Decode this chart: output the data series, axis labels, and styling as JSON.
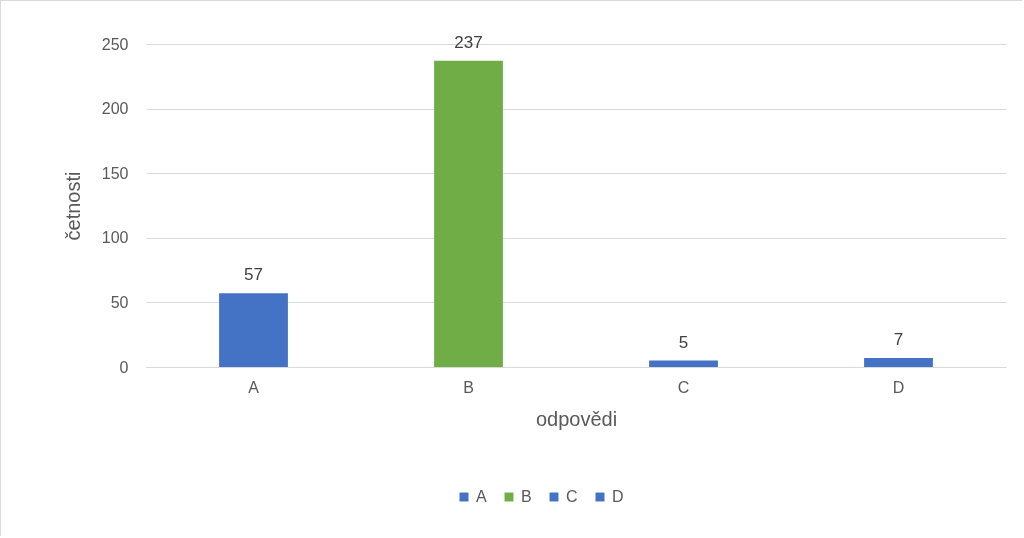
{
  "chart_data": {
    "type": "bar",
    "xlabel": "odpovědi",
    "ylabel": "četnosti",
    "categories": [
      "A",
      "B",
      "C",
      "D"
    ],
    "series": [
      {
        "name": "A",
        "color": "#4472c4",
        "values": [
          57,
          null,
          null,
          null
        ]
      },
      {
        "name": "B",
        "color": "#70ad47",
        "values": [
          null,
          237,
          null,
          null
        ]
      },
      {
        "name": "C",
        "color": "#4472c4",
        "values": [
          null,
          null,
          5,
          null
        ]
      },
      {
        "name": "D",
        "color": "#4472c4",
        "values": [
          null,
          null,
          null,
          7
        ]
      }
    ],
    "ylim": [
      0,
      250
    ],
    "yticks": [
      0,
      50,
      100,
      150,
      200,
      250
    ],
    "grid": "y",
    "data_labels": true,
    "legend": "bottom"
  }
}
